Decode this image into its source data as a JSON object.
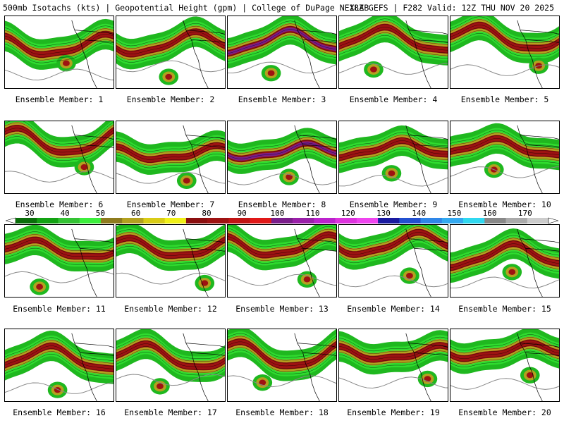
{
  "header": {
    "left": "500mb Isotachs (kts) | Geopotential Height (gpm) | College of DuPage NEXLAB",
    "right": "18Z GEFS | F282 Valid: 12Z THU NOV 20 2025"
  },
  "colorbar": {
    "ticks": [
      "30",
      "40",
      "50",
      "60",
      "70",
      "80",
      "90",
      "100",
      "110",
      "120",
      "130",
      "140",
      "150",
      "160",
      "170"
    ],
    "colors": [
      "#0a6e0a",
      "#13a213",
      "#34c234",
      "#3cee3c",
      "#8e7b1d",
      "#b3a11f",
      "#d9cc16",
      "#f0f018",
      "#8b0f0f",
      "#9e1212",
      "#c01414",
      "#e01818",
      "#7a1d8a",
      "#991fa8",
      "#bb22cc",
      "#dd33dd",
      "#ee44ee",
      "#1a1aa0",
      "#2250d0",
      "#2f86e8",
      "#33a9f0",
      "#30d8f0",
      "#888888",
      "#aaaaaa",
      "#cccccc"
    ]
  },
  "panel_label_prefix": "Ensemble Member: ",
  "members": [
    "1",
    "2",
    "3",
    "4",
    "5",
    "6",
    "7",
    "8",
    "9",
    "10",
    "11",
    "12",
    "13",
    "14",
    "15",
    "16",
    "17",
    "18",
    "19",
    "20"
  ],
  "members_labels": [
    "Ensemble Member: 1",
    "Ensemble Member: 2",
    "Ensemble Member: 3",
    "Ensemble Member: 4",
    "Ensemble Member: 5",
    "Ensemble Member: 6",
    "Ensemble Member: 7",
    "Ensemble Member: 8",
    "Ensemble Member: 9",
    "Ensemble Member: 10",
    "Ensemble Member: 11",
    "Ensemble Member: 12",
    "Ensemble Member: 13",
    "Ensemble Member: 14",
    "Ensemble Member: 15",
    "Ensemble Member: 16",
    "Ensemble Member: 17",
    "Ensemble Member: 18",
    "Ensemble Member: 19",
    "Ensemble Member: 20"
  ],
  "colors": {
    "weak": "#1fb81f",
    "moderate": "#2fdc2f",
    "strong": "#b3a11f",
    "jet_core": "#9e1212",
    "extreme": "#7a1d8a",
    "contour": "#000000",
    "height_line": "#888888"
  }
}
